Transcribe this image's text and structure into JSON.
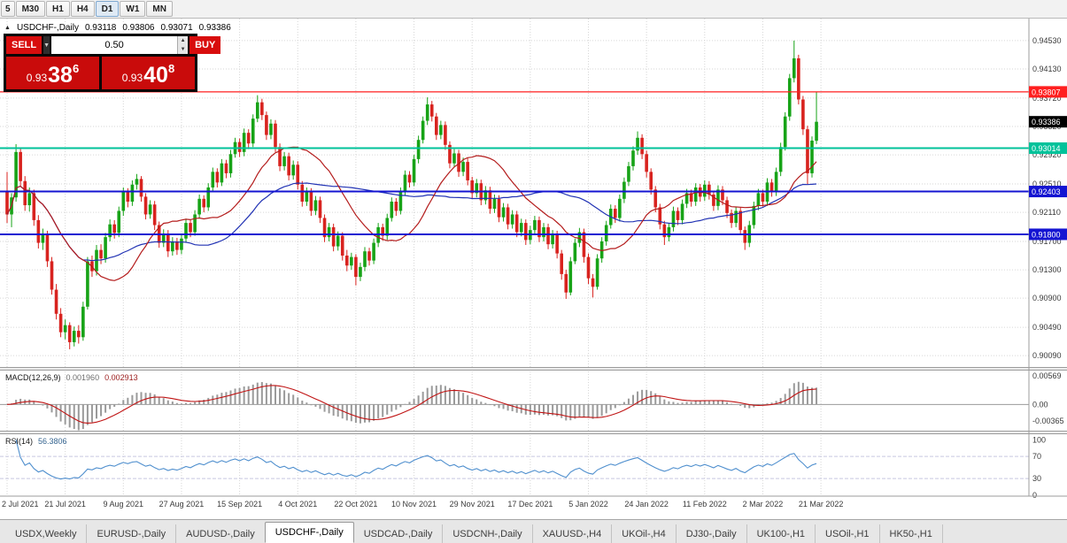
{
  "toolbar": {
    "timeframes": [
      "5",
      "M30",
      "H1",
      "H4",
      "D1",
      "W1",
      "MN"
    ],
    "active": "D1"
  },
  "chart_header": {
    "toggle_icon": "▲",
    "symbol": "USDCHF-,Daily",
    "open": "0.93118",
    "high": "0.93806",
    "low": "0.93071",
    "close": "0.93386"
  },
  "trade_widget": {
    "sell_label": "SELL",
    "buy_label": "BUY",
    "volume": "0.50",
    "spin_up_icon": "▲",
    "spin_down_icon": "▼",
    "dropdown_icon": "▼",
    "sell_price": {
      "base": "0.93",
      "pips": "38",
      "point": "6"
    },
    "buy_price": {
      "base": "0.93",
      "pips": "40",
      "point": "8"
    }
  },
  "chart_data": {
    "type": "candlestick",
    "symbol": "USDCHF",
    "timeframe": "Daily",
    "ylim": [
      0.8993,
      0.9484
    ],
    "y_ticks": [
      "0.94530",
      "0.94130",
      "0.93720",
      "0.93320",
      "0.92920",
      "0.92510",
      "0.92110",
      "0.91700",
      "0.91300",
      "0.90900",
      "0.90490",
      "0.90090"
    ],
    "x_labels": [
      "2 Jul 2021",
      "21 Jul 2021",
      "9 Aug 2021",
      "27 Aug 2021",
      "15 Sep 2021",
      "4 Oct 2021",
      "22 Oct 2021",
      "10 Nov 2021",
      "29 Nov 2021",
      "17 Dec 2021",
      "5 Jan 2022",
      "24 Jan 2022",
      "11 Feb 2022",
      "2 Mar 2022",
      "21 Mar 2022"
    ],
    "x_label_indices": [
      0,
      13,
      26,
      39,
      52,
      65,
      78,
      91,
      104,
      117,
      130,
      143,
      156,
      169,
      182
    ],
    "colors": {
      "candle_up": "#17a317",
      "candle_down": "#d8231f",
      "ma_fast": "#b41c1c",
      "ma_slow": "#2233b4",
      "grid": "#d6d6d6",
      "macd_histogram": "#9a9a9a",
      "macd_signal": "#c01414",
      "current_price_bg": "#000000"
    },
    "overlays": {
      "ma_fast": {
        "period": 18,
        "color": "#b41c1c"
      },
      "ma_slow": {
        "period": 40,
        "color": "#2233b4"
      }
    },
    "hlines": [
      {
        "name": "resistance-red-line",
        "value": 0.93807,
        "label": "0.93807",
        "color": "#ff1f1f",
        "width": 1.3
      },
      {
        "name": "support-teal-line",
        "value": 0.93014,
        "label": "0.93014",
        "color": "#00c29a",
        "width": 2
      },
      {
        "name": "support-blue-line-1",
        "value": 0.92403,
        "label": "0.92403",
        "color": "#1414d2",
        "width": 2
      },
      {
        "name": "support-blue-line-2",
        "value": 0.918,
        "label": "0.91800",
        "color": "#1414d2",
        "width": 2
      }
    ],
    "current_price": {
      "value": 0.93386,
      "label": "0.93386"
    },
    "macd": {
      "name": "MACD(12,26,9)",
      "value_main": "0.001960",
      "value_signal": "0.002913",
      "params": [
        12,
        26,
        9
      ],
      "ylim": [
        -0.0048,
        0.0062
      ],
      "ticks": [
        "0.00569",
        "0.00",
        "-0.00365"
      ]
    },
    "rsi": {
      "name": "RSI(14)",
      "value": "56.3806",
      "period": 14,
      "ticks": [
        100,
        70,
        30,
        0
      ],
      "levels": [
        70,
        30
      ],
      "ylim": [
        0,
        110
      ],
      "color": "#4f8fce"
    },
    "candles": [
      [
        0.924,
        0.9268,
        0.9196,
        0.9208
      ],
      [
        0.9208,
        0.9238,
        0.919,
        0.9232
      ],
      [
        0.9232,
        0.9307,
        0.9226,
        0.9296
      ],
      [
        0.9296,
        0.9301,
        0.9247,
        0.9255
      ],
      [
        0.9255,
        0.9262,
        0.9213,
        0.9221
      ],
      [
        0.9221,
        0.9246,
        0.9212,
        0.9238
      ],
      [
        0.9238,
        0.9243,
        0.9192,
        0.92
      ],
      [
        0.92,
        0.9207,
        0.916,
        0.9168
      ],
      [
        0.9168,
        0.9188,
        0.9158,
        0.918
      ],
      [
        0.918,
        0.9185,
        0.9134,
        0.9142
      ],
      [
        0.9142,
        0.9148,
        0.9095,
        0.9102
      ],
      [
        0.9102,
        0.911,
        0.906,
        0.9068
      ],
      [
        0.9068,
        0.9076,
        0.9035,
        0.9042
      ],
      [
        0.9042,
        0.906,
        0.9032,
        0.9052
      ],
      [
        0.9052,
        0.9056,
        0.9018,
        0.9028
      ],
      [
        0.9028,
        0.905,
        0.9022,
        0.9044
      ],
      [
        0.9044,
        0.9052,
        0.9026,
        0.9035
      ],
      [
        0.9035,
        0.9085,
        0.903,
        0.9078
      ],
      [
        0.9078,
        0.9148,
        0.9074,
        0.9142
      ],
      [
        0.9142,
        0.915,
        0.912,
        0.9128
      ],
      [
        0.9128,
        0.9165,
        0.9122,
        0.9158
      ],
      [
        0.9158,
        0.9166,
        0.9138,
        0.9146
      ],
      [
        0.9146,
        0.9182,
        0.914,
        0.9176
      ],
      [
        0.9176,
        0.9201,
        0.917,
        0.9194
      ],
      [
        0.9194,
        0.92,
        0.9174,
        0.9182
      ],
      [
        0.9182,
        0.9219,
        0.9176,
        0.9213
      ],
      [
        0.9213,
        0.9246,
        0.9206,
        0.924
      ],
      [
        0.924,
        0.9245,
        0.9218,
        0.9226
      ],
      [
        0.9226,
        0.9256,
        0.922,
        0.925
      ],
      [
        0.925,
        0.9265,
        0.9243,
        0.9258
      ],
      [
        0.9258,
        0.9262,
        0.9226,
        0.9233
      ],
      [
        0.9233,
        0.9238,
        0.9201,
        0.9208
      ],
      [
        0.9208,
        0.9228,
        0.9202,
        0.9222
      ],
      [
        0.9222,
        0.9227,
        0.9186,
        0.9193
      ],
      [
        0.9193,
        0.9198,
        0.9161,
        0.9168
      ],
      [
        0.9168,
        0.9187,
        0.9162,
        0.9181
      ],
      [
        0.9181,
        0.9186,
        0.9148,
        0.9156
      ],
      [
        0.9156,
        0.9176,
        0.915,
        0.917
      ],
      [
        0.917,
        0.9175,
        0.9151,
        0.9158
      ],
      [
        0.9158,
        0.918,
        0.9152,
        0.9174
      ],
      [
        0.9174,
        0.9202,
        0.9168,
        0.9196
      ],
      [
        0.9196,
        0.9201,
        0.9176,
        0.9183
      ],
      [
        0.9183,
        0.9214,
        0.9178,
        0.9208
      ],
      [
        0.9208,
        0.9236,
        0.9202,
        0.923
      ],
      [
        0.923,
        0.9235,
        0.9211,
        0.9218
      ],
      [
        0.9218,
        0.9252,
        0.9213,
        0.9246
      ],
      [
        0.9246,
        0.9274,
        0.924,
        0.9268
      ],
      [
        0.9268,
        0.9273,
        0.9246,
        0.9253
      ],
      [
        0.9253,
        0.9286,
        0.9248,
        0.928
      ],
      [
        0.928,
        0.9285,
        0.9259,
        0.9266
      ],
      [
        0.9266,
        0.9299,
        0.926,
        0.9293
      ],
      [
        0.9293,
        0.9316,
        0.9288,
        0.931
      ],
      [
        0.931,
        0.9315,
        0.9289,
        0.9296
      ],
      [
        0.9296,
        0.9329,
        0.929,
        0.9323
      ],
      [
        0.9323,
        0.9328,
        0.93,
        0.9308
      ],
      [
        0.9308,
        0.9349,
        0.9303,
        0.9343
      ],
      [
        0.9343,
        0.9376,
        0.9338,
        0.9366
      ],
      [
        0.9366,
        0.9371,
        0.9341,
        0.9348
      ],
      [
        0.9348,
        0.9353,
        0.9313,
        0.932
      ],
      [
        0.932,
        0.9342,
        0.9314,
        0.9336
      ],
      [
        0.9336,
        0.9341,
        0.9296,
        0.9303
      ],
      [
        0.9303,
        0.9308,
        0.9269,
        0.9276
      ],
      [
        0.9276,
        0.9296,
        0.927,
        0.929
      ],
      [
        0.929,
        0.9295,
        0.9256,
        0.9263
      ],
      [
        0.9263,
        0.9284,
        0.9257,
        0.9278
      ],
      [
        0.9278,
        0.9283,
        0.9243,
        0.925
      ],
      [
        0.925,
        0.9255,
        0.9219,
        0.9226
      ],
      [
        0.9226,
        0.9246,
        0.922,
        0.924
      ],
      [
        0.924,
        0.9245,
        0.9206,
        0.9213
      ],
      [
        0.9213,
        0.9234,
        0.9207,
        0.9228
      ],
      [
        0.9228,
        0.9233,
        0.9196,
        0.9203
      ],
      [
        0.9203,
        0.9208,
        0.9169,
        0.9176
      ],
      [
        0.9176,
        0.9196,
        0.917,
        0.919
      ],
      [
        0.919,
        0.9195,
        0.9156,
        0.9163
      ],
      [
        0.9163,
        0.9184,
        0.9157,
        0.9178
      ],
      [
        0.9178,
        0.9183,
        0.9143,
        0.915
      ],
      [
        0.915,
        0.9158,
        0.9128,
        0.9136
      ],
      [
        0.9136,
        0.9154,
        0.913,
        0.9148
      ],
      [
        0.9148,
        0.9152,
        0.9108,
        0.912
      ],
      [
        0.912,
        0.914,
        0.9114,
        0.9134
      ],
      [
        0.9134,
        0.9162,
        0.9128,
        0.9156
      ],
      [
        0.9156,
        0.9161,
        0.9136,
        0.9143
      ],
      [
        0.9143,
        0.9174,
        0.9138,
        0.9168
      ],
      [
        0.9168,
        0.9196,
        0.9162,
        0.919
      ],
      [
        0.919,
        0.9195,
        0.9171,
        0.9178
      ],
      [
        0.9178,
        0.9209,
        0.9172,
        0.9203
      ],
      [
        0.9203,
        0.9232,
        0.9198,
        0.9226
      ],
      [
        0.9226,
        0.9231,
        0.9206,
        0.9213
      ],
      [
        0.9213,
        0.9246,
        0.9208,
        0.924
      ],
      [
        0.924,
        0.927,
        0.9234,
        0.9264
      ],
      [
        0.9264,
        0.9269,
        0.9246,
        0.9253
      ],
      [
        0.9253,
        0.9292,
        0.9248,
        0.9286
      ],
      [
        0.9286,
        0.9319,
        0.928,
        0.9313
      ],
      [
        0.9313,
        0.9346,
        0.9308,
        0.934
      ],
      [
        0.934,
        0.9373,
        0.9334,
        0.9363
      ],
      [
        0.9363,
        0.9368,
        0.9339,
        0.9346
      ],
      [
        0.9346,
        0.9351,
        0.9313,
        0.932
      ],
      [
        0.932,
        0.934,
        0.9314,
        0.9334
      ],
      [
        0.9334,
        0.9339,
        0.9299,
        0.9306
      ],
      [
        0.9306,
        0.9311,
        0.9273,
        0.928
      ],
      [
        0.928,
        0.93,
        0.9274,
        0.9294
      ],
      [
        0.9294,
        0.9299,
        0.9261,
        0.9268
      ],
      [
        0.9268,
        0.9288,
        0.9262,
        0.9282
      ],
      [
        0.9282,
        0.9287,
        0.9249,
        0.9256
      ],
      [
        0.9256,
        0.9261,
        0.923,
        0.9238
      ],
      [
        0.9238,
        0.9258,
        0.9232,
        0.9252
      ],
      [
        0.9252,
        0.9257,
        0.9221,
        0.9228
      ],
      [
        0.9228,
        0.9248,
        0.9222,
        0.9242
      ],
      [
        0.9242,
        0.9247,
        0.9209,
        0.9216
      ],
      [
        0.9216,
        0.9236,
        0.921,
        0.923
      ],
      [
        0.923,
        0.9235,
        0.9197,
        0.9204
      ],
      [
        0.9204,
        0.9224,
        0.9198,
        0.9218
      ],
      [
        0.9218,
        0.9223,
        0.9187,
        0.9194
      ],
      [
        0.9194,
        0.9214,
        0.9188,
        0.9208
      ],
      [
        0.9208,
        0.9213,
        0.9176,
        0.9183
      ],
      [
        0.9183,
        0.9202,
        0.9177,
        0.9196
      ],
      [
        0.9196,
        0.9201,
        0.9165,
        0.9172
      ],
      [
        0.9172,
        0.9192,
        0.9166,
        0.9186
      ],
      [
        0.9186,
        0.9206,
        0.918,
        0.92
      ],
      [
        0.92,
        0.9205,
        0.9169,
        0.9176
      ],
      [
        0.9176,
        0.9196,
        0.917,
        0.919
      ],
      [
        0.919,
        0.9195,
        0.9159,
        0.9166
      ],
      [
        0.9166,
        0.9186,
        0.916,
        0.918
      ],
      [
        0.918,
        0.9185,
        0.9146,
        0.9153
      ],
      [
        0.9153,
        0.9158,
        0.9116,
        0.9124
      ],
      [
        0.9124,
        0.913,
        0.9089,
        0.9098
      ],
      [
        0.9098,
        0.9148,
        0.9094,
        0.9142
      ],
      [
        0.9142,
        0.9174,
        0.9138,
        0.9168
      ],
      [
        0.9168,
        0.9189,
        0.9162,
        0.9183
      ],
      [
        0.9183,
        0.9188,
        0.914,
        0.9148
      ],
      [
        0.9148,
        0.9153,
        0.911,
        0.9118
      ],
      [
        0.9118,
        0.9124,
        0.9091,
        0.9106
      ],
      [
        0.9106,
        0.9152,
        0.9102,
        0.9146
      ],
      [
        0.9146,
        0.9176,
        0.914,
        0.917
      ],
      [
        0.917,
        0.9199,
        0.9164,
        0.9193
      ],
      [
        0.9193,
        0.9222,
        0.9188,
        0.9216
      ],
      [
        0.9216,
        0.9221,
        0.9196,
        0.9203
      ],
      [
        0.9203,
        0.9236,
        0.9198,
        0.923
      ],
      [
        0.923,
        0.926,
        0.9224,
        0.9254
      ],
      [
        0.9254,
        0.9282,
        0.9248,
        0.9276
      ],
      [
        0.9276,
        0.9304,
        0.927,
        0.9298
      ],
      [
        0.9298,
        0.9325,
        0.9292,
        0.9316
      ],
      [
        0.9316,
        0.9321,
        0.9286,
        0.9293
      ],
      [
        0.9293,
        0.9298,
        0.926,
        0.9268
      ],
      [
        0.9268,
        0.9273,
        0.9236,
        0.9243
      ],
      [
        0.9243,
        0.9248,
        0.9211,
        0.9218
      ],
      [
        0.9218,
        0.9223,
        0.9187,
        0.9194
      ],
      [
        0.9194,
        0.9199,
        0.9165,
        0.9176
      ],
      [
        0.9176,
        0.9196,
        0.917,
        0.919
      ],
      [
        0.919,
        0.9219,
        0.9184,
        0.9213
      ],
      [
        0.9213,
        0.9218,
        0.9193,
        0.92
      ],
      [
        0.92,
        0.9229,
        0.9194,
        0.9223
      ],
      [
        0.9223,
        0.9244,
        0.9217,
        0.9238
      ],
      [
        0.9238,
        0.9243,
        0.9219,
        0.9226
      ],
      [
        0.9226,
        0.9252,
        0.922,
        0.9246
      ],
      [
        0.9246,
        0.9251,
        0.9226,
        0.9233
      ],
      [
        0.9233,
        0.9256,
        0.9227,
        0.925
      ],
      [
        0.925,
        0.9255,
        0.9229,
        0.9236
      ],
      [
        0.9236,
        0.9241,
        0.9213,
        0.922
      ],
      [
        0.922,
        0.9249,
        0.9214,
        0.9243
      ],
      [
        0.9243,
        0.9248,
        0.9221,
        0.9228
      ],
      [
        0.9228,
        0.9233,
        0.9203,
        0.921
      ],
      [
        0.921,
        0.9215,
        0.9189,
        0.9196
      ],
      [
        0.9196,
        0.9219,
        0.919,
        0.9213
      ],
      [
        0.9213,
        0.9218,
        0.9179,
        0.9186
      ],
      [
        0.9186,
        0.9191,
        0.9158,
        0.9168
      ],
      [
        0.9168,
        0.9199,
        0.9162,
        0.9193
      ],
      [
        0.9193,
        0.9226,
        0.9188,
        0.922
      ],
      [
        0.922,
        0.9244,
        0.9214,
        0.9238
      ],
      [
        0.9238,
        0.9243,
        0.9219,
        0.9226
      ],
      [
        0.9226,
        0.9259,
        0.922,
        0.9253
      ],
      [
        0.9253,
        0.9258,
        0.9233,
        0.924
      ],
      [
        0.924,
        0.9274,
        0.9234,
        0.9268
      ],
      [
        0.9268,
        0.9309,
        0.9262,
        0.9303
      ],
      [
        0.9303,
        0.9352,
        0.9298,
        0.9346
      ],
      [
        0.9346,
        0.9406,
        0.934,
        0.94
      ],
      [
        0.94,
        0.9453,
        0.9394,
        0.9428
      ],
      [
        0.9428,
        0.9433,
        0.9363,
        0.937
      ],
      [
        0.937,
        0.9375,
        0.932,
        0.9328
      ],
      [
        0.9328,
        0.9333,
        0.925,
        0.9266
      ],
      [
        0.9266,
        0.9318,
        0.926,
        0.9312
      ],
      [
        0.93118,
        0.93806,
        0.93071,
        0.93386
      ]
    ]
  },
  "tabs": {
    "items": [
      "USDX,Weekly",
      "EURUSD-,Daily",
      "AUDUSD-,Daily",
      "USDCHF-,Daily",
      "USDCAD-,Daily",
      "USDCNH-,Daily",
      "XAUUSD-,H4",
      "UKOil-,H4",
      "DJ30-,Daily",
      "UK100-,H1",
      "USOil-,H1",
      "HK50-,H1"
    ],
    "active": "USDCHF-,Daily"
  }
}
